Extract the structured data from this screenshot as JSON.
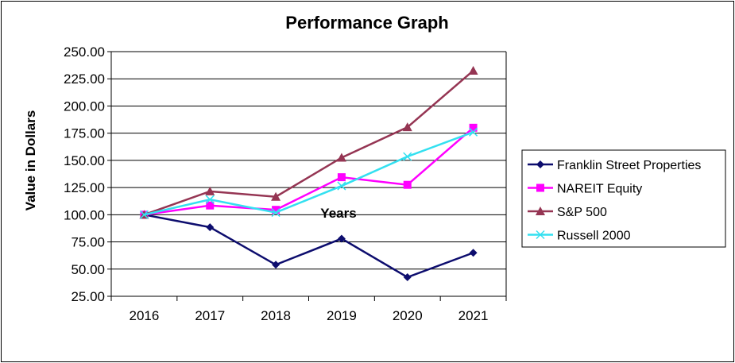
{
  "chart_data": {
    "type": "line",
    "title": "Performance Graph",
    "xlabel": "Years",
    "ylabel": "Value in Dollars",
    "categories": [
      "2016",
      "2017",
      "2018",
      "2019",
      "2020",
      "2021"
    ],
    "ylim": [
      25,
      250
    ],
    "yticks": [
      "25.00",
      "50.00",
      "75.00",
      "100.00",
      "125.00",
      "150.00",
      "175.00",
      "200.00",
      "225.00",
      "250.00"
    ],
    "grid": "horizontal",
    "legend_position": "right",
    "series": [
      {
        "name": "Franklin Street Properties",
        "color": "#0d0d6e",
        "marker": "diamond",
        "values": [
          100,
          88.5,
          54,
          78,
          42.5,
          65
        ]
      },
      {
        "name": "NAREIT Equity",
        "color": "#ff00ff",
        "marker": "square",
        "values": [
          100,
          108.5,
          104.5,
          134.5,
          127.5,
          180
        ]
      },
      {
        "name": "S&P 500",
        "color": "#953553",
        "marker": "triangle",
        "values": [
          100,
          121.5,
          116.5,
          152.5,
          180.5,
          232.5
        ]
      },
      {
        "name": "Russell 2000",
        "color": "#33e0f0",
        "marker": "x",
        "values": [
          100,
          114,
          102,
          126.5,
          153.5,
          176
        ]
      }
    ]
  }
}
